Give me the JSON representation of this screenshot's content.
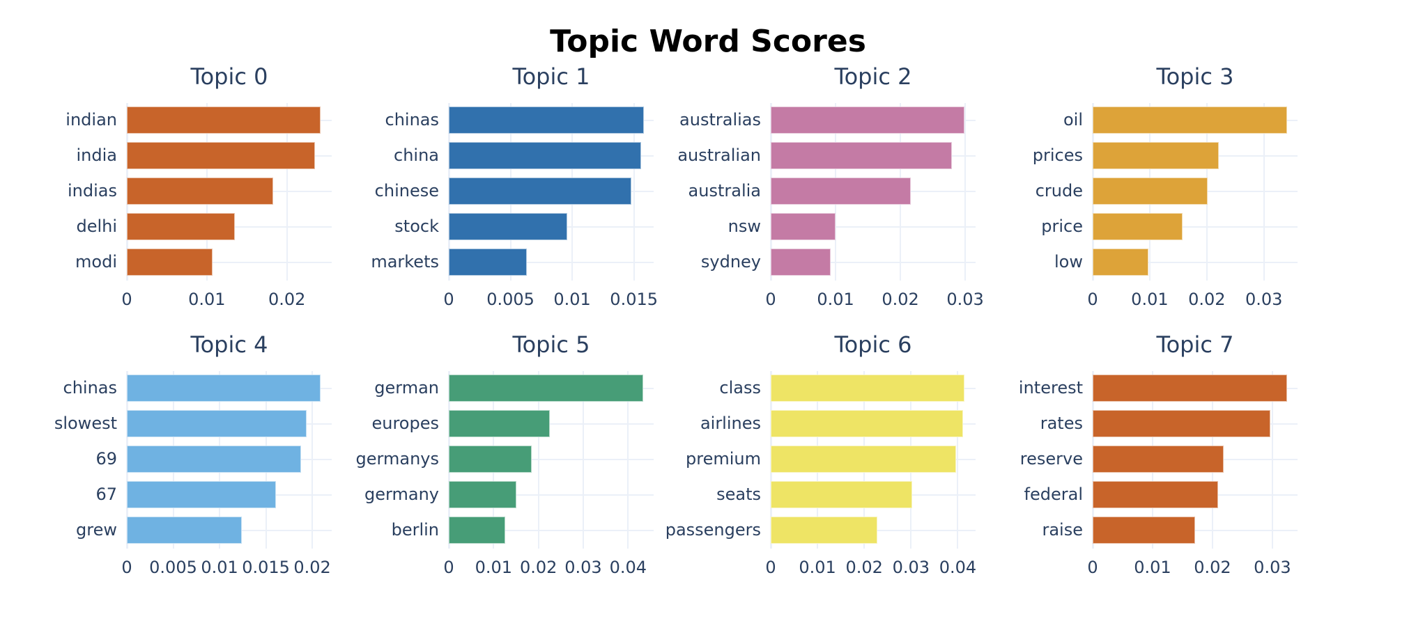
{
  "title": "Topic Word Scores",
  "chart_data": [
    {
      "type": "bar",
      "orientation": "horizontal",
      "title": "Topic 0",
      "categories": [
        "indian",
        "india",
        "indias",
        "delhi",
        "modi"
      ],
      "values": [
        0.0242,
        0.0235,
        0.0183,
        0.0135,
        0.0107
      ],
      "color": "#C8642A",
      "xticks": [
        {
          "v": 0,
          "label": "0"
        },
        {
          "v": 0.01,
          "label": "0.01"
        },
        {
          "v": 0.02,
          "label": "0.02"
        }
      ],
      "xlim": [
        0,
        0.0256
      ],
      "xlabel": "",
      "ylabel": "",
      "grid": true
    },
    {
      "type": "bar",
      "orientation": "horizontal",
      "title": "Topic 1",
      "categories": [
        "chinas",
        "china",
        "chinese",
        "stock",
        "markets"
      ],
      "values": [
        0.0158,
        0.0156,
        0.0148,
        0.0096,
        0.0063
      ],
      "color": "#3171AD",
      "xticks": [
        {
          "v": 0,
          "label": "0"
        },
        {
          "v": 0.005,
          "label": "0.005"
        },
        {
          "v": 0.01,
          "label": "0.01"
        },
        {
          "v": 0.015,
          "label": "0.015"
        }
      ],
      "xlim": [
        0,
        0.0166
      ],
      "xlabel": "",
      "ylabel": "",
      "grid": true
    },
    {
      "type": "bar",
      "orientation": "horizontal",
      "title": "Topic 2",
      "categories": [
        "australias",
        "australian",
        "australia",
        "nsw",
        "sydney"
      ],
      "values": [
        0.0299,
        0.0279,
        0.0216,
        0.01,
        0.0092
      ],
      "color": "#C47BA5",
      "xticks": [
        {
          "v": 0,
          "label": "0"
        },
        {
          "v": 0.01,
          "label": "0.01"
        },
        {
          "v": 0.02,
          "label": "0.02"
        },
        {
          "v": 0.03,
          "label": "0.03"
        }
      ],
      "xlim": [
        0,
        0.0316
      ],
      "xlabel": "",
      "ylabel": "",
      "grid": true
    },
    {
      "type": "bar",
      "orientation": "horizontal",
      "title": "Topic 3",
      "categories": [
        "oil",
        "prices",
        "crude",
        "price",
        "low"
      ],
      "values": [
        0.0341,
        0.0221,
        0.0202,
        0.0157,
        0.0098
      ],
      "color": "#DDA339",
      "xticks": [
        {
          "v": 0,
          "label": "0"
        },
        {
          "v": 0.01,
          "label": "0.01"
        },
        {
          "v": 0.02,
          "label": "0.02"
        },
        {
          "v": 0.03,
          "label": "0.03"
        }
      ],
      "xlim": [
        0,
        0.0359
      ],
      "xlabel": "",
      "ylabel": "",
      "grid": true
    },
    {
      "type": "bar",
      "orientation": "horizontal",
      "title": "Topic 4",
      "categories": [
        "chinas",
        "slowest",
        "69",
        "67",
        "grew"
      ],
      "values": [
        0.0209,
        0.0194,
        0.0188,
        0.0161,
        0.0124
      ],
      "color": "#6FB2E2",
      "xticks": [
        {
          "v": 0,
          "label": "0"
        },
        {
          "v": 0.005,
          "label": "0.005"
        },
        {
          "v": 0.01,
          "label": "0.01"
        },
        {
          "v": 0.015,
          "label": "0.015"
        },
        {
          "v": 0.02,
          "label": "0.02"
        }
      ],
      "xlim": [
        0,
        0.0221
      ],
      "xlabel": "",
      "ylabel": "",
      "grid": true
    },
    {
      "type": "bar",
      "orientation": "horizontal",
      "title": "Topic 5",
      "categories": [
        "german",
        "europes",
        "germanys",
        "germany",
        "berlin"
      ],
      "values": [
        0.0433,
        0.0226,
        0.0185,
        0.0151,
        0.0126
      ],
      "color": "#479D77",
      "xticks": [
        {
          "v": 0,
          "label": "0"
        },
        {
          "v": 0.01,
          "label": "0.01"
        },
        {
          "v": 0.02,
          "label": "0.02"
        },
        {
          "v": 0.03,
          "label": "0.03"
        },
        {
          "v": 0.04,
          "label": "0.04"
        }
      ],
      "xlim": [
        0,
        0.0457
      ],
      "xlabel": "",
      "ylabel": "",
      "grid": true
    },
    {
      "type": "bar",
      "orientation": "horizontal",
      "title": "Topic 6",
      "categories": [
        "class",
        "airlines",
        "premium",
        "seats",
        "passengers"
      ],
      "values": [
        0.0414,
        0.0411,
        0.0396,
        0.0303,
        0.0228
      ],
      "color": "#EEE465",
      "xticks": [
        {
          "v": 0,
          "label": "0"
        },
        {
          "v": 0.01,
          "label": "0.01"
        },
        {
          "v": 0.02,
          "label": "0.02"
        },
        {
          "v": 0.03,
          "label": "0.03"
        },
        {
          "v": 0.04,
          "label": "0.04"
        }
      ],
      "xlim": [
        0,
        0.0438
      ],
      "xlabel": "",
      "ylabel": "",
      "grid": true
    },
    {
      "type": "bar",
      "orientation": "horizontal",
      "title": "Topic 7",
      "categories": [
        "interest",
        "rates",
        "reserve",
        "federal",
        "raise"
      ],
      "values": [
        0.0324,
        0.0297,
        0.0219,
        0.0209,
        0.0171
      ],
      "color": "#C8642A",
      "xticks": [
        {
          "v": 0,
          "label": "0"
        },
        {
          "v": 0.01,
          "label": "0.01"
        },
        {
          "v": 0.02,
          "label": "0.02"
        },
        {
          "v": 0.03,
          "label": "0.03"
        }
      ],
      "xlim": [
        0,
        0.0342
      ],
      "xlabel": "",
      "ylabel": "",
      "grid": true
    }
  ]
}
